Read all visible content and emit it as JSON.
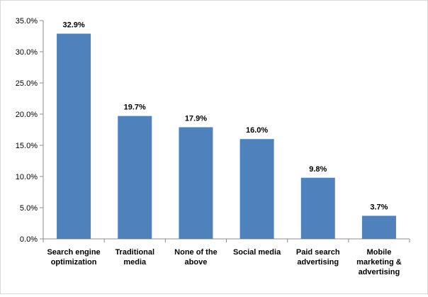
{
  "chart_data": {
    "type": "bar",
    "categories": [
      [
        "Search engine",
        "optimization"
      ],
      [
        "Traditional",
        "media"
      ],
      [
        "None of the",
        "above"
      ],
      [
        "Social media"
      ],
      [
        "Paid search",
        "advertising"
      ],
      [
        "Mobile",
        "marketing &",
        "advertising"
      ]
    ],
    "values": [
      32.9,
      19.7,
      17.9,
      16.0,
      9.8,
      3.7
    ],
    "data_labels": [
      "32.9%",
      "19.7%",
      "17.9%",
      "16.0%",
      "9.8%",
      "3.7%"
    ],
    "y_ticks": [
      "0.0%",
      "5.0%",
      "10.0%",
      "15.0%",
      "20.0%",
      "25.0%",
      "30.0%",
      "35.0%"
    ],
    "ylim": [
      0,
      35
    ],
    "grid": false,
    "legend": "none",
    "bar_color": "#4f81bd",
    "title": "",
    "xlabel": "",
    "ylabel": ""
  }
}
